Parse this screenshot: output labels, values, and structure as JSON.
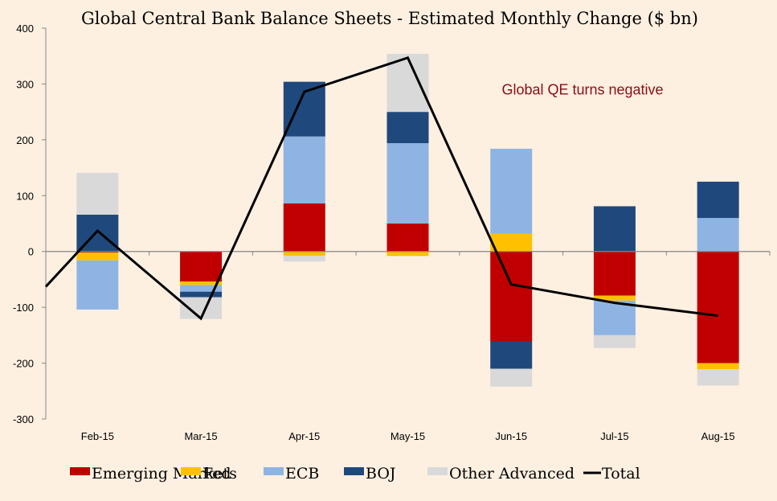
{
  "chart_data": {
    "type": "bar",
    "stacked": true,
    "title": "Global Central Bank Balance Sheets  -  Estimated Monthly Change ($ bn)",
    "xlabel": "",
    "ylabel": "",
    "ylim": [
      -300,
      400
    ],
    "yticks": [
      400,
      300,
      200,
      100,
      0,
      -100,
      -200,
      -300
    ],
    "grid": false,
    "legend_position": "bottom",
    "categories": [
      "Feb-15",
      "Mar-15",
      "Apr-15",
      "May-15",
      "Jun-15",
      "Jul-15",
      "Aug-15"
    ],
    "series": [
      {
        "name": "Emerging Markets",
        "type": "bar",
        "color": "#c00000",
        "values": [
          -2,
          -54,
          86,
          50,
          -161,
          -79,
          -200
        ]
      },
      {
        "name": "Fed",
        "type": "bar",
        "color": "#ffc000",
        "values": [
          -14,
          -6,
          -8,
          -8,
          32,
          -9,
          -11
        ]
      },
      {
        "name": "ECB",
        "type": "bar",
        "color": "#8eb4e3",
        "values": [
          -88,
          -12,
          120,
          144,
          152,
          -62,
          60
        ]
      },
      {
        "name": "BOJ",
        "type": "bar",
        "color": "#1f497d",
        "values": [
          66,
          -10,
          98,
          56,
          -49,
          81,
          65
        ]
      },
      {
        "name": "Other Advanced",
        "type": "bar",
        "color": "#d9d9d9",
        "values": [
          75,
          -39,
          -10,
          104,
          -32,
          -23,
          -29
        ]
      },
      {
        "name": "Total",
        "type": "line",
        "color": "#000000",
        "values": [
          37,
          -120,
          286,
          347,
          -59,
          -92,
          -115
        ],
        "start_value_at_axis": -63
      }
    ],
    "annotations": [
      {
        "text": "Global QE turns negative",
        "color": "#8b0d14",
        "x_category": "Jun-15",
        "y": 290
      }
    ]
  }
}
